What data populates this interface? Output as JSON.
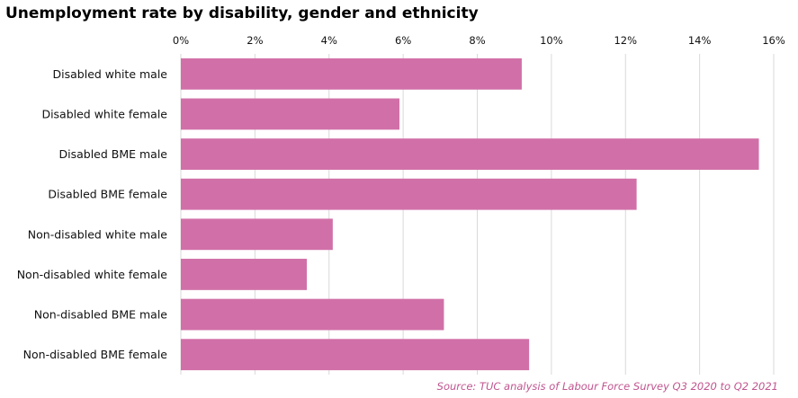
{
  "chart_data": {
    "type": "bar",
    "orientation": "horizontal",
    "title": "Unemployment rate by disability, gender and ethnicity",
    "categories": [
      "Disabled white male",
      "Disabled white female",
      "Disabled BME male",
      "Disabled BME female",
      "Non-disabled white male",
      "Non-disabled white female",
      "Non-disabled BME male",
      "Non-disabled BME female"
    ],
    "values": [
      9.2,
      5.9,
      15.6,
      12.3,
      4.1,
      3.4,
      7.1,
      9.4
    ],
    "unit": "%",
    "xlim": [
      0,
      16
    ],
    "x_ticks": [
      "0%",
      "2%",
      "4%",
      "6%",
      "8%",
      "10%",
      "12%",
      "14%",
      "16%"
    ],
    "x_axis_position": "top",
    "grid": true,
    "xlabel": "",
    "ylabel": "",
    "source": "Source: TUC analysis of Labour Force Survey Q3 2020 to Q2 2021",
    "colors": {
      "bar": "#d170a8",
      "grid": "#d9d9d9",
      "source": "#c0558f"
    }
  }
}
